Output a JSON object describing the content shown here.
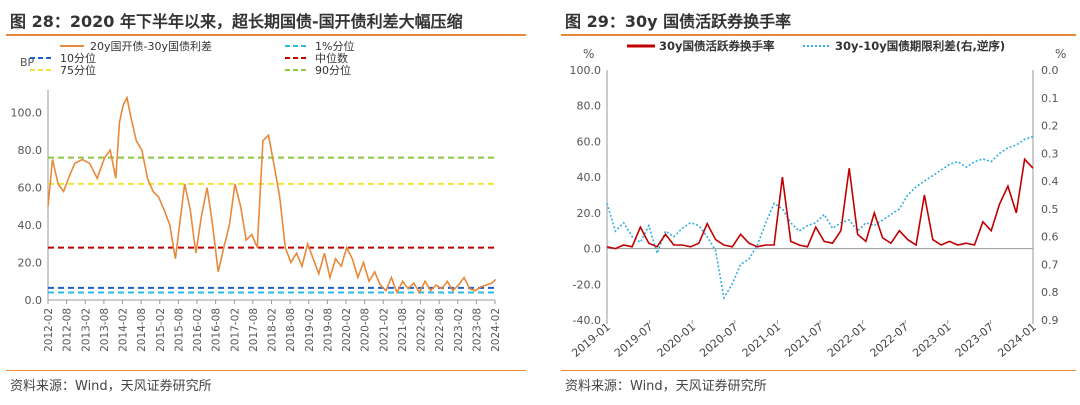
{
  "left": {
    "figure_label": "图 28：",
    "title": "2020 年下半年以来，超长期国债-国开债利差大幅压缩",
    "source": "资料来源：Wind，天风证券研究所",
    "colors": {
      "main": "#E8893A",
      "p1": "#2EB9E6",
      "p10": "#1F5FC8",
      "median": "#C00000",
      "p75": "#F0E33A",
      "p90": "#8DC63F",
      "grid": "#e0e0e0",
      "axis": "#999999"
    }
  },
  "right": {
    "figure_label": "图 29：",
    "title": "30y 国债活跃券换手率",
    "source": "资料来源：Wind，天风证券研究所",
    "colors": {
      "turnover": "#C00000",
      "spread": "#33B0E0",
      "axis": "#999999"
    }
  },
  "chart_data": [
    {
      "type": "line",
      "ylabel": "BP",
      "ylim": [
        0,
        110
      ],
      "yticks": [
        "0.0",
        "20.0",
        "40.0",
        "60.0",
        "80.0",
        "100.0"
      ],
      "xticks": [
        "2012-02",
        "2012-08",
        "2013-02",
        "2013-08",
        "2014-02",
        "2014-08",
        "2015-02",
        "2015-08",
        "2016-02",
        "2016-08",
        "2017-02",
        "2017-08",
        "2018-02",
        "2018-08",
        "2019-02",
        "2019-08",
        "2020-02",
        "2020-08",
        "2021-02",
        "2021-08",
        "2022-02",
        "2022-08",
        "2023-02",
        "2023-08",
        "2024-02"
      ],
      "legend": [
        "20y国开债-30y国债利差",
        "1%分位",
        "10分位",
        "中位数",
        "75分位",
        "90分位"
      ],
      "legend_position": "top",
      "hlines": {
        "p1": 4.0,
        "p10": 6.5,
        "median": 28.0,
        "p75": 62.0,
        "p90": 76.0
      },
      "series": [
        {
          "name": "20y国开债-30y国债利差",
          "x": [
            2012.08,
            2012.2,
            2012.35,
            2012.5,
            2012.65,
            2012.8,
            2013.0,
            2013.2,
            2013.4,
            2013.6,
            2013.75,
            2013.9,
            2014.0,
            2014.1,
            2014.2,
            2014.3,
            2014.45,
            2014.6,
            2014.75,
            2014.9,
            2015.05,
            2015.2,
            2015.35,
            2015.5,
            2015.6,
            2015.75,
            2015.9,
            2016.05,
            2016.2,
            2016.35,
            2016.5,
            2016.65,
            2016.8,
            2016.95,
            2017.1,
            2017.25,
            2017.4,
            2017.55,
            2017.7,
            2017.85,
            2018.0,
            2018.15,
            2018.3,
            2018.45,
            2018.6,
            2018.75,
            2018.9,
            2019.05,
            2019.2,
            2019.35,
            2019.5,
            2019.65,
            2019.8,
            2019.95,
            2020.1,
            2020.25,
            2020.4,
            2020.55,
            2020.7,
            2020.85,
            2021.0,
            2021.15,
            2021.3,
            2021.45,
            2021.6,
            2021.75,
            2021.9,
            2022.05,
            2022.2,
            2022.35,
            2022.5,
            2022.65,
            2022.8,
            2022.95,
            2023.1,
            2023.25,
            2023.4,
            2023.55,
            2023.7,
            2023.85,
            2024.0,
            2024.1
          ],
          "values": [
            50,
            75,
            62,
            58,
            66,
            73,
            75,
            73,
            65,
            76,
            80,
            65,
            95,
            104,
            108,
            98,
            85,
            80,
            65,
            58,
            55,
            48,
            40,
            22,
            38,
            62,
            48,
            25,
            45,
            60,
            40,
            15,
            28,
            40,
            62,
            50,
            32,
            35,
            28,
            85,
            88,
            72,
            55,
            28,
            20,
            25,
            18,
            30,
            22,
            14,
            25,
            12,
            22,
            18,
            28,
            22,
            12,
            20,
            10,
            15,
            8,
            5,
            12,
            4,
            10,
            6,
            9,
            4,
            10,
            5,
            8,
            6,
            10,
            5,
            8,
            12,
            6,
            5,
            7,
            8,
            9,
            11
          ]
        }
      ]
    },
    {
      "type": "line",
      "ylim_left": [
        -40,
        100
      ],
      "ylim_right": [
        0.9,
        0.0
      ],
      "yticks_left": [
        "-40.0",
        "-20.0",
        "0.0",
        "20.0",
        "40.0",
        "60.0",
        "80.0",
        "100.0"
      ],
      "yticks_right": [
        "0.0",
        "0.1",
        "0.2",
        "0.3",
        "0.4",
        "0.5",
        "0.6",
        "0.7",
        "0.8",
        "0.9"
      ],
      "left_unit": "%",
      "right_unit": "%",
      "xticks": [
        "2019-01",
        "2019-07",
        "2020-01",
        "2020-07",
        "2021-01",
        "2021-07",
        "2022-01",
        "2022-07",
        "2023-01",
        "2023-07",
        "2024-01"
      ],
      "legend": [
        "30y国债活跃券换手率",
        "30y-10y国债期限利差(右,逆序)"
      ],
      "legend_position": "top",
      "series": [
        {
          "name": "30y国债活跃券换手率",
          "axis": "left",
          "x": [
            2019.0,
            2019.1,
            2019.2,
            2019.3,
            2019.4,
            2019.5,
            2019.6,
            2019.7,
            2019.8,
            2019.9,
            2020.0,
            2020.1,
            2020.2,
            2020.3,
            2020.4,
            2020.5,
            2020.6,
            2020.7,
            2020.8,
            2020.9,
            2021.0,
            2021.1,
            2021.2,
            2021.3,
            2021.4,
            2021.5,
            2021.6,
            2021.7,
            2021.8,
            2021.9,
            2022.0,
            2022.1,
            2022.2,
            2022.3,
            2022.4,
            2022.5,
            2022.6,
            2022.7,
            2022.8,
            2022.9,
            2023.0,
            2023.1,
            2023.2,
            2023.3,
            2023.4,
            2023.5,
            2023.6,
            2023.7,
            2023.8,
            2023.9,
            2024.0,
            2024.1
          ],
          "values": [
            1,
            0,
            2,
            1,
            12,
            3,
            1,
            8,
            2,
            2,
            1,
            3,
            14,
            5,
            2,
            1,
            8,
            3,
            1,
            2,
            2,
            40,
            4,
            2,
            1,
            12,
            4,
            3,
            10,
            45,
            8,
            4,
            20,
            6,
            3,
            10,
            5,
            2,
            30,
            5,
            2,
            4,
            2,
            3,
            2,
            15,
            10,
            25,
            35,
            20,
            50,
            45
          ]
        },
        {
          "name": "30y-10y国债期限利差(右,逆序)",
          "axis": "right",
          "x": [
            2019.0,
            2019.1,
            2019.2,
            2019.3,
            2019.4,
            2019.5,
            2019.6,
            2019.7,
            2019.8,
            2019.9,
            2020.0,
            2020.1,
            2020.2,
            2020.3,
            2020.4,
            2020.5,
            2020.6,
            2020.7,
            2020.8,
            2020.9,
            2021.0,
            2021.1,
            2021.2,
            2021.3,
            2021.4,
            2021.5,
            2021.6,
            2021.7,
            2021.8,
            2021.9,
            2022.0,
            2022.1,
            2022.2,
            2022.3,
            2022.4,
            2022.5,
            2022.6,
            2022.7,
            2022.8,
            2022.9,
            2023.0,
            2023.1,
            2023.2,
            2023.3,
            2023.4,
            2023.5,
            2023.6,
            2023.7,
            2023.8,
            2023.9,
            2024.0,
            2024.1
          ],
          "values": [
            0.48,
            0.58,
            0.55,
            0.6,
            0.62,
            0.56,
            0.66,
            0.58,
            0.6,
            0.57,
            0.55,
            0.56,
            0.6,
            0.65,
            0.82,
            0.77,
            0.7,
            0.68,
            0.63,
            0.55,
            0.48,
            0.5,
            0.55,
            0.58,
            0.56,
            0.55,
            0.52,
            0.57,
            0.55,
            0.54,
            0.58,
            0.55,
            0.56,
            0.54,
            0.52,
            0.5,
            0.45,
            0.42,
            0.4,
            0.38,
            0.36,
            0.34,
            0.33,
            0.35,
            0.33,
            0.32,
            0.33,
            0.3,
            0.28,
            0.27,
            0.25,
            0.24
          ]
        }
      ]
    }
  ]
}
